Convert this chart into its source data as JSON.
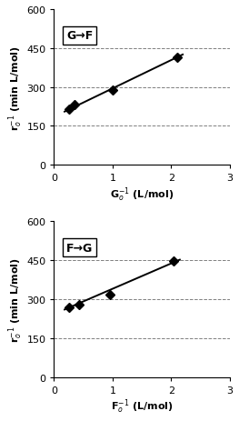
{
  "top": {
    "label": "G→F",
    "xlabel": "G$_o^{-1}$ (L/mol)",
    "ylabel": "r$_o^{-1}$ (min L/mol)",
    "x_data": [
      0.25,
      0.35,
      1.0,
      2.1
    ],
    "y_data": [
      215,
      232,
      288,
      415
    ],
    "line_x": [
      0.18,
      2.2
    ],
    "line_y": [
      205,
      425
    ],
    "xlim": [
      0,
      3
    ],
    "ylim": [
      0,
      600
    ],
    "xticks": [
      0,
      1,
      2,
      3
    ],
    "yticks": [
      0,
      150,
      300,
      450,
      600
    ],
    "grid_yticks": [
      150,
      300,
      450
    ],
    "grid_style": "top",
    "color": "#000000"
  },
  "bottom": {
    "label": "F→G",
    "xlabel": "F$_o^{-1}$ (L/mol)",
    "ylabel": "r$_o^{-1}$ (min L/mol)",
    "x_data": [
      0.25,
      0.42,
      0.95,
      2.05
    ],
    "y_data": [
      268,
      278,
      318,
      448
    ],
    "line_x": [
      0.18,
      2.15
    ],
    "line_y": [
      260,
      452
    ],
    "xlim": [
      0,
      3
    ],
    "ylim": [
      0,
      600
    ],
    "xticks": [
      0,
      1,
      2,
      3
    ],
    "yticks": [
      0,
      150,
      300,
      450,
      600
    ],
    "grid_yticks": [
      150,
      300,
      450
    ],
    "grid_style": "bottom",
    "color": "#000000"
  },
  "fig_width": 2.63,
  "fig_height": 4.64,
  "dpi": 100
}
